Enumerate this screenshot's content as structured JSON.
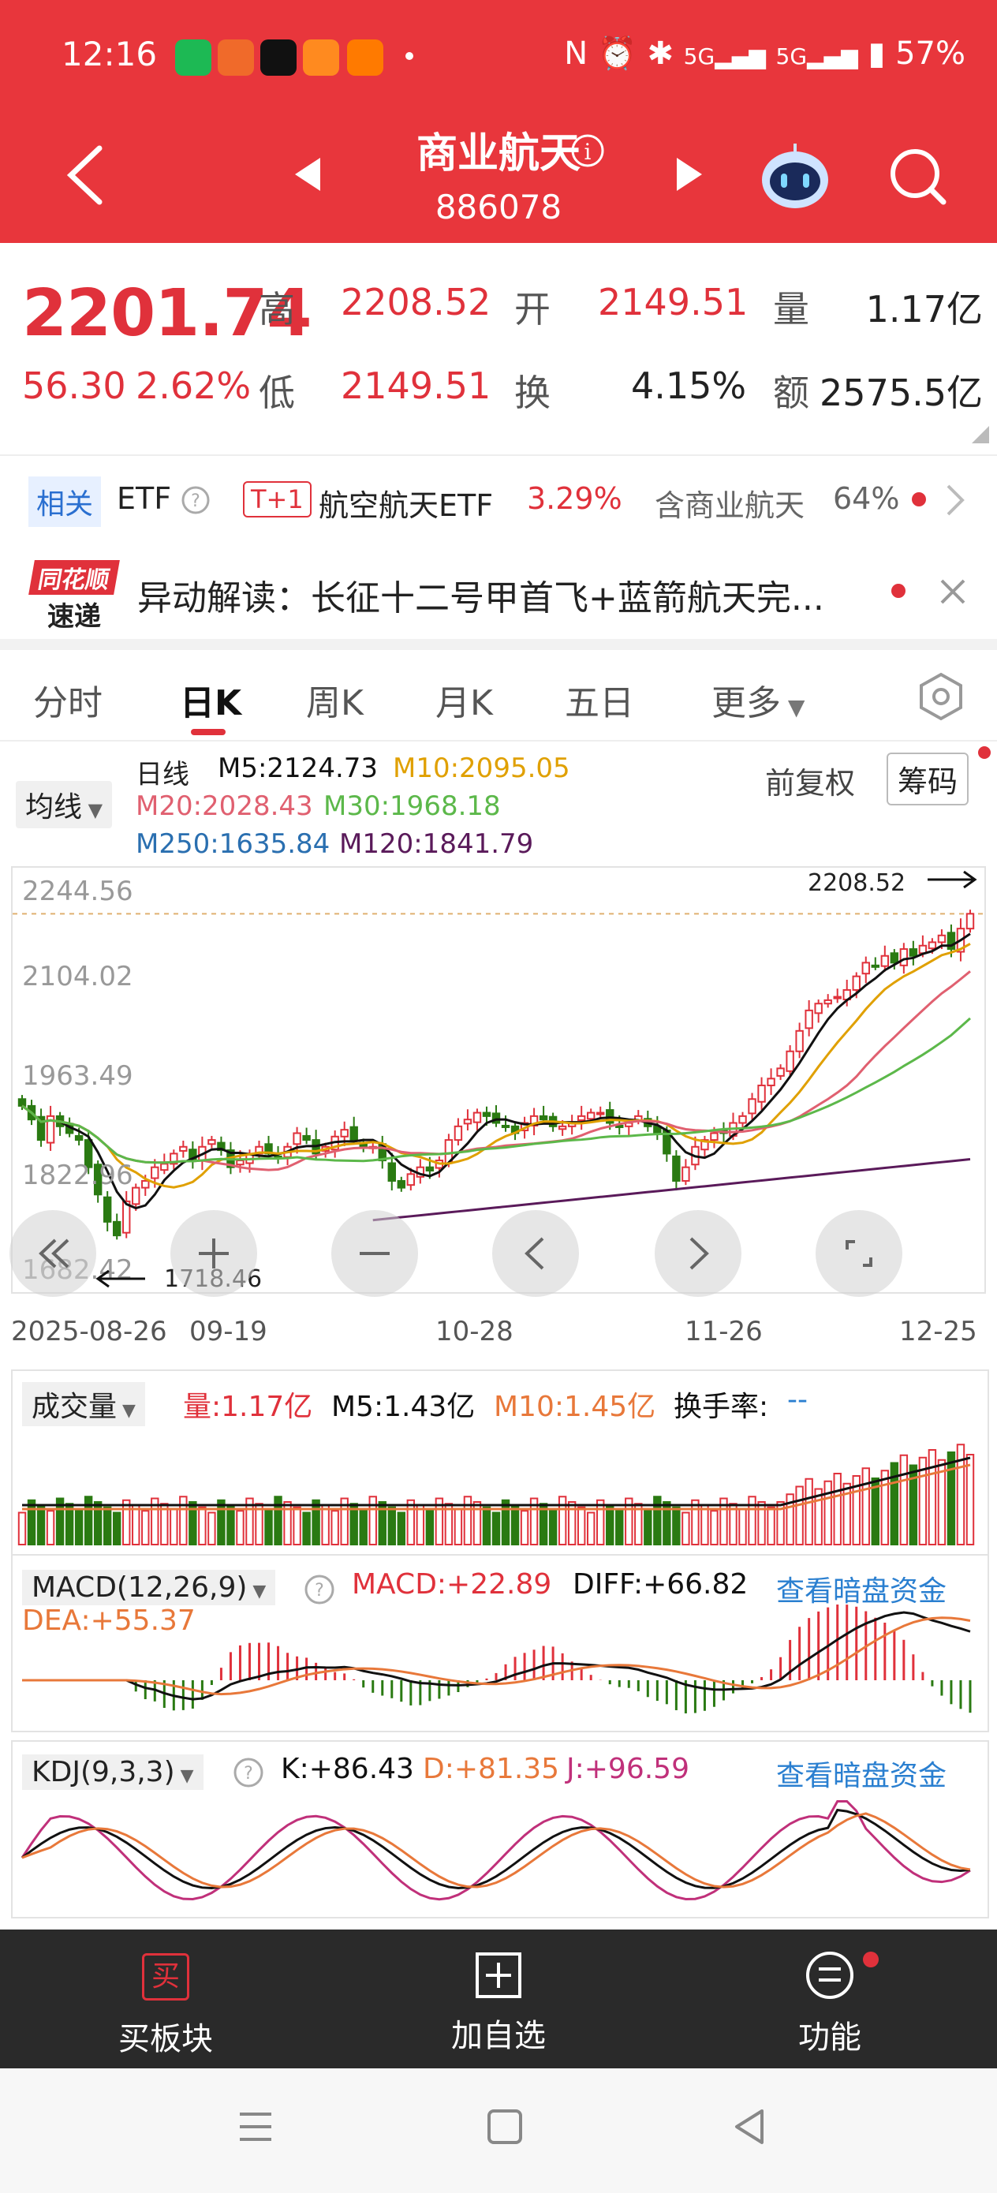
{
  "status_bar": {
    "time": "12:16",
    "battery": "57%"
  },
  "header": {
    "title": "商业航天",
    "code": "886078"
  },
  "quote": {
    "price": "2201.74",
    "change": "56.30",
    "change_pct": "2.62%",
    "high_label": "高",
    "high": "2208.52",
    "open_label": "开",
    "open": "2149.51",
    "volume_label": "量",
    "volume": "1.17亿",
    "low_label": "低",
    "low": "2149.51",
    "turnover_label": "换",
    "turnover": "4.15%",
    "amount_label": "额",
    "amount": "2575.5亿"
  },
  "etf_row": {
    "related_label": "相关",
    "etf_label": "ETF",
    "t1_badge": "T+1",
    "etf_name": "航空航天ETF",
    "etf_change": "3.29%",
    "contain_label": "含商业航天",
    "contain_pct": "64%"
  },
  "news": {
    "logo_top": "同花顺",
    "logo_bottom": "速递",
    "text": "异动解读：长征十二号甲首飞+蓝箭航天完..."
  },
  "tabs": [
    "分时",
    "日K",
    "周K",
    "月K",
    "五日",
    "更多"
  ],
  "active_tab": "日K",
  "ma_panel": {
    "indicator_select": "均线",
    "period_label": "日线",
    "m5": "M5:2124.73",
    "m10": "M10:2095.05",
    "m20": "M20:2028.43",
    "m30": "M30:1968.18",
    "m250": "M250:1635.84",
    "m120": "M120:1841.79",
    "adjust_label": "前复权",
    "chip_button": "筹码"
  },
  "kline": {
    "y_labels": [
      "2244.56",
      "2104.02",
      "1963.49",
      "1822.96",
      "1682.42"
    ],
    "high_marker": "2208.52",
    "low_marker": "1718.46",
    "x_labels": [
      "2025-08-26",
      "09-19",
      "10-28",
      "11-26",
      "12-25"
    ]
  },
  "volume_panel": {
    "select": "成交量",
    "vol": "量:1.17亿",
    "m5": "M5:1.43亿",
    "m10": "M10:1.45亿",
    "turnover_label": "换手率:",
    "turnover_value": "--"
  },
  "macd_panel": {
    "select": "MACD(12,26,9)",
    "macd": "MACD:+22.89",
    "diff": "DIFF:+66.82",
    "dea": "DEA:+55.37",
    "link": "查看暗盘资金"
  },
  "kdj_panel": {
    "select": "KDJ(9,3,3)",
    "k": "K:+86.43",
    "d": "D:+81.35",
    "j": "J:+96.59",
    "link": "查看暗盘资金"
  },
  "bottom_nav": {
    "buy": "买板块",
    "buy_icon_char": "买",
    "add": "加自选",
    "func": "功能"
  },
  "colors": {
    "header_red": "#e8363c",
    "up_red": "#e0313b",
    "down_green": "#2a7a12",
    "m5": "#111111",
    "m10": "#e0a000",
    "m20": "#e06070",
    "m30": "#5cb84a",
    "m250": "#2a6fb0",
    "m120": "#5a1a5a",
    "link_blue": "#2a7fd0"
  },
  "chart_data": {
    "type": "candlestick",
    "x_axis_labels": [
      "2025-08-26",
      "09-19",
      "10-28",
      "11-26",
      "12-25"
    ],
    "y_axis_labels": [
      2244.56,
      2104.02,
      1963.49,
      1822.96,
      1682.42
    ],
    "last_close": 2201.74,
    "period_high": 2208.52,
    "period_low": 1718.46,
    "moving_averages": {
      "M5": 2124.73,
      "M10": 2095.05,
      "M20": 2028.43,
      "M30": 1968.18,
      "M120": 1841.79,
      "M250": 1635.84
    },
    "closes": [
      1920,
      1900,
      1870,
      1905,
      1890,
      1880,
      1870,
      1830,
      1790,
      1750,
      1730,
      1780,
      1800,
      1810,
      1830,
      1835,
      1850,
      1860,
      1840,
      1860,
      1870,
      1855,
      1830,
      1840,
      1850,
      1860,
      1850,
      1845,
      1860,
      1880,
      1870,
      1850,
      1860,
      1875,
      1885,
      1870,
      1860,
      1860,
      1840,
      1810,
      1800,
      1820,
      1830,
      1825,
      1840,
      1870,
      1890,
      1900,
      1910,
      1905,
      1895,
      1890,
      1880,
      1895,
      1905,
      1900,
      1890,
      1890,
      1895,
      1905,
      1910,
      1910,
      1895,
      1890,
      1895,
      1905,
      1890,
      1880,
      1850,
      1810,
      1830,
      1860,
      1870,
      1880,
      1880,
      1895,
      1905,
      1930,
      1950,
      1960,
      1975,
      2000,
      2030,
      2060,
      2070,
      2075,
      2080,
      2090,
      2110,
      2130,
      2125,
      2140,
      2130,
      2150,
      2140,
      2155,
      2160,
      2170,
      2150,
      2180,
      2201.74
    ]
  }
}
